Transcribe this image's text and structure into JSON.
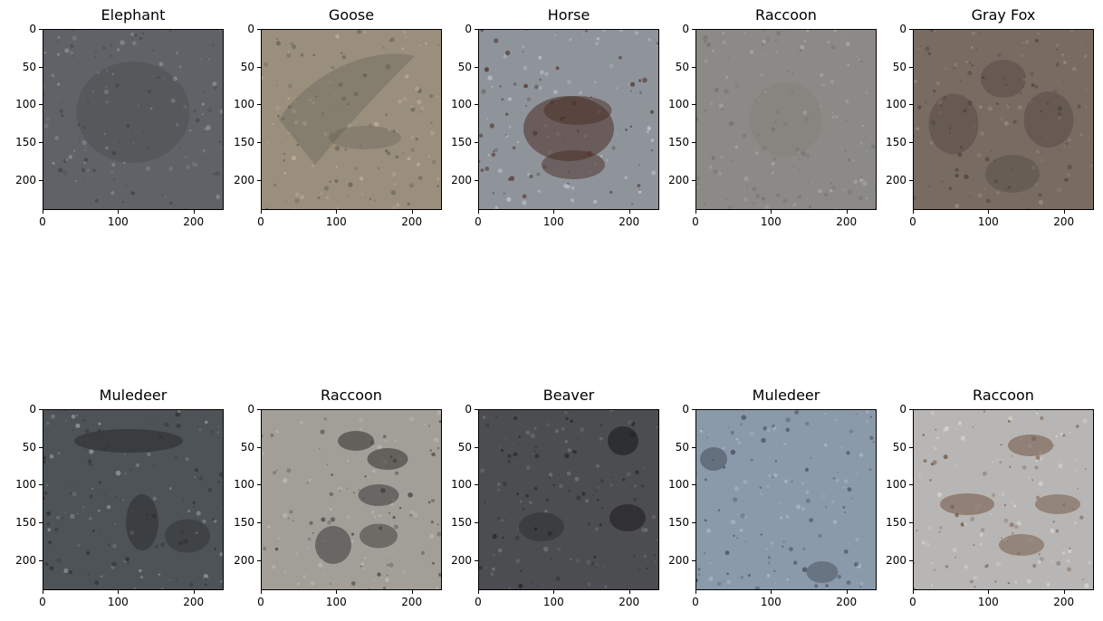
{
  "figure": {
    "panels": [
      {
        "title": "Elephant",
        "texture": "elephant",
        "base": "#5f6266",
        "dark": "#3a3d40",
        "light": "#9a9ea3"
      },
      {
        "title": "Goose",
        "texture": "goose",
        "base": "#9a8f7d",
        "dark": "#5e5b52",
        "light": "#c2b59d"
      },
      {
        "title": "Horse",
        "texture": "horse",
        "base": "#8f949b",
        "dark": "#4a2e26",
        "light": "#c5ccd4"
      },
      {
        "title": "Raccoon",
        "texture": "raccoon1",
        "base": "#8b8a86",
        "dark": "#6f6d68",
        "light": "#b2b0ab"
      },
      {
        "title": "Gray Fox",
        "texture": "grayfox",
        "base": "#786c62",
        "dark": "#4a413b",
        "light": "#9d9186"
      },
      {
        "title": "Muledeer",
        "texture": "muledeer1",
        "base": "#4e5357",
        "dark": "#2a2c2e",
        "light": "#9ea3a8"
      },
      {
        "title": "Raccoon",
        "texture": "raccoon2",
        "base": "#a29f99",
        "dark": "#3a3836",
        "light": "#c2bfb9"
      },
      {
        "title": "Beaver",
        "texture": "beaver",
        "base": "#4c4d51",
        "dark": "#1f1f22",
        "light": "#77787c"
      },
      {
        "title": "Muledeer",
        "texture": "muledeer2",
        "base": "#8a9aaa",
        "dark": "#3d4650",
        "light": "#b3c2d0"
      },
      {
        "title": "Raccoon",
        "texture": "raccoon3",
        "base": "#b7b6b4",
        "dark": "#6b4a35",
        "light": "#dcdad6"
      }
    ],
    "x_ticks": [
      0,
      100,
      200
    ],
    "y_ticks": [
      0,
      50,
      100,
      150,
      200
    ],
    "image_extent": 240
  }
}
